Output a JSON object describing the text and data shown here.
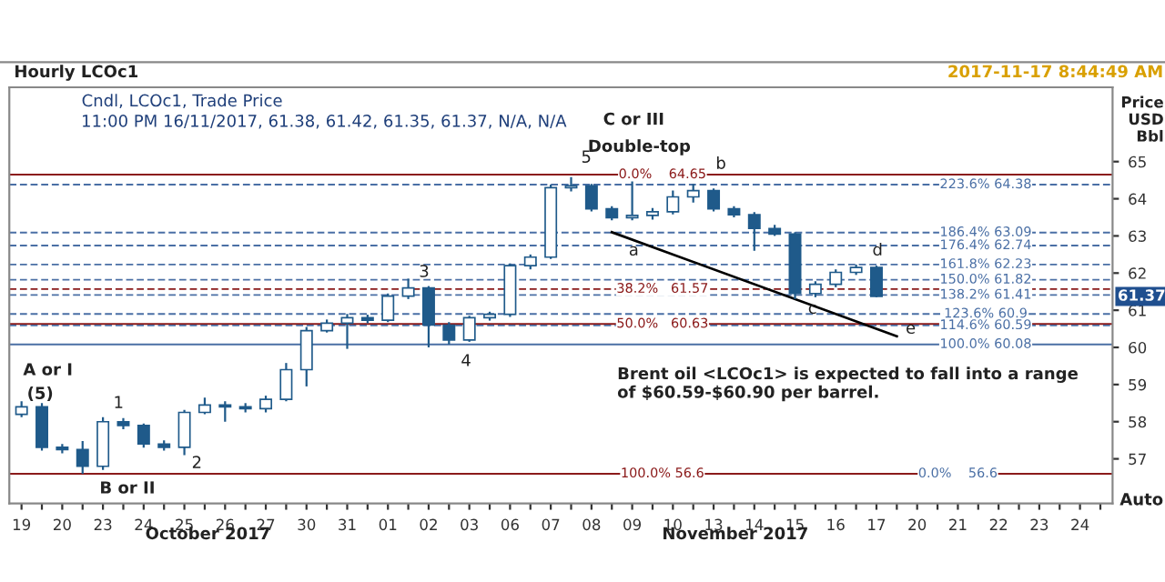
{
  "chart_data": {
    "type": "candlestick",
    "title": "Hourly LCOc1",
    "subtitle": "Cndl, LCOc1, Trade Price",
    "ylabel": "Price\nUSD\nBbl",
    "color": "#1f5a8a",
    "categories": [
      "19",
      null,
      "20",
      null,
      "23",
      null,
      "24",
      null,
      "25",
      null,
      "26",
      null,
      "27",
      null,
      "30",
      null,
      "31",
      null,
      "01",
      null,
      "02",
      null,
      "03",
      null,
      "06",
      null,
      "07",
      null,
      "08",
      null,
      "09",
      null,
      "10",
      null,
      "13",
      null,
      "14",
      null,
      "15",
      null,
      "16",
      null,
      "17",
      null,
      "20",
      null,
      "21",
      null,
      "22",
      null,
      "23",
      null,
      "24",
      null
    ],
    "ohlc": [
      [
        58.2,
        58.55,
        58.12,
        58.4
      ],
      [
        58.4,
        58.5,
        57.22,
        57.31
      ],
      [
        57.31,
        57.4,
        57.15,
        57.25
      ],
      [
        57.25,
        57.48,
        56.6,
        56.8
      ],
      [
        56.8,
        58.12,
        56.7,
        58.0
      ],
      [
        58.0,
        58.1,
        57.8,
        57.9
      ],
      [
        57.9,
        57.95,
        57.3,
        57.4
      ],
      [
        57.4,
        57.5,
        57.22,
        57.31
      ],
      [
        57.31,
        58.32,
        57.1,
        58.25
      ],
      [
        58.25,
        58.65,
        58.2,
        58.45
      ],
      [
        58.45,
        58.55,
        58.0,
        58.4
      ],
      [
        58.4,
        58.5,
        58.25,
        58.35
      ],
      [
        58.35,
        58.7,
        58.25,
        58.6
      ],
      [
        58.6,
        59.58,
        58.55,
        59.4
      ],
      [
        59.4,
        60.55,
        58.95,
        60.45
      ],
      [
        60.45,
        60.75,
        60.4,
        60.65
      ],
      [
        60.65,
        60.9,
        59.96,
        60.8
      ],
      [
        60.8,
        60.88,
        60.65,
        60.73
      ],
      [
        60.73,
        61.45,
        60.68,
        61.38
      ],
      [
        61.38,
        61.85,
        61.3,
        61.6
      ],
      [
        61.6,
        61.65,
        60.0,
        60.6
      ],
      [
        60.6,
        60.68,
        60.08,
        60.2
      ],
      [
        60.2,
        60.85,
        60.15,
        60.8
      ],
      [
        60.8,
        60.96,
        60.72,
        60.89
      ],
      [
        60.89,
        62.26,
        60.82,
        62.2
      ],
      [
        62.2,
        62.5,
        62.1,
        62.43
      ],
      [
        62.43,
        64.38,
        62.38,
        64.3
      ],
      [
        64.3,
        64.58,
        64.2,
        64.35
      ],
      [
        64.35,
        64.4,
        63.66,
        63.73
      ],
      [
        63.73,
        63.8,
        63.42,
        63.49
      ],
      [
        63.49,
        64.65,
        63.42,
        63.55
      ],
      [
        63.55,
        63.75,
        63.44,
        63.65
      ],
      [
        63.65,
        64.22,
        63.58,
        64.05
      ],
      [
        64.05,
        64.4,
        63.9,
        64.22
      ],
      [
        64.22,
        64.28,
        63.66,
        63.73
      ],
      [
        63.73,
        63.8,
        63.5,
        63.57
      ],
      [
        63.57,
        63.64,
        62.6,
        63.2
      ],
      [
        63.2,
        63.3,
        63.0,
        63.05
      ],
      [
        63.05,
        63.1,
        61.3,
        61.45
      ],
      [
        61.45,
        61.78,
        61.35,
        61.7
      ],
      [
        61.7,
        62.1,
        61.62,
        62.02
      ],
      [
        62.02,
        62.23,
        61.95,
        62.15
      ],
      [
        62.15,
        62.2,
        61.35,
        61.37
      ],
      null,
      null,
      null,
      null,
      null,
      null,
      null,
      null,
      null,
      null,
      null
    ],
    "series": [
      {
        "type": "line",
        "color": "#000000",
        "values": [
          null,
          null,
          null,
          null,
          null,
          null,
          null,
          null,
          null,
          null,
          null,
          null,
          null,
          null,
          null,
          null,
          null,
          null,
          null,
          null,
          null,
          null,
          null,
          null,
          null,
          null,
          null,
          null,
          null,
          63.1,
          null,
          null,
          null,
          null,
          null,
          null,
          null,
          null,
          null,
          null,
          null,
          null,
          null,
          60.3,
          null,
          null,
          null,
          null,
          null,
          null,
          null,
          null,
          null,
          null
        ]
      }
    ],
    "ylim": [
      55.8,
      67.0
    ],
    "yticks": [
      57,
      58,
      59,
      60,
      61,
      62,
      63,
      64,
      65
    ],
    "grid": false,
    "ref_lines": [
      {
        "axis": "y",
        "value": 64.65,
        "label": "0.0%    64.65",
        "color": "#8b1a1a",
        "line_style": "solid"
      },
      {
        "axis": "y",
        "value": 61.57,
        "label": "38.2%   61.57",
        "color": "#8b1a1a",
        "line_style": "dashed"
      },
      {
        "axis": "y",
        "value": 60.63,
        "label": "50.0%   60.63",
        "color": "#8b1a1a",
        "line_style": "solid"
      },
      {
        "axis": "y",
        "value": 56.6,
        "label": "100.0% 56.6",
        "color": "#8b1a1a",
        "line_style": "solid"
      },
      {
        "axis": "y",
        "value": 64.38,
        "label": "223.6% 64.38",
        "color": "#4a6fa5",
        "line_style": "dashed"
      },
      {
        "axis": "y",
        "value": 63.09,
        "label": "186.4% 63.09",
        "color": "#4a6fa5",
        "line_style": "dashed"
      },
      {
        "axis": "y",
        "value": 62.74,
        "label": "176.4% 62.74",
        "color": "#4a6fa5",
        "line_style": "dashed"
      },
      {
        "axis": "y",
        "value": 62.23,
        "label": "161.8% 62.23",
        "color": "#4a6fa5",
        "line_style": "dashed"
      },
      {
        "axis": "y",
        "value": 61.82,
        "label": "150.0% 61.82",
        "color": "#4a6fa5",
        "line_style": "dashed"
      },
      {
        "axis": "y",
        "value": 61.41,
        "label": "138.2% 61.41",
        "color": "#4a6fa5",
        "line_style": "dashed"
      },
      {
        "axis": "y",
        "value": 60.9,
        "label": "123.6% 60.9",
        "color": "#4a6fa5",
        "line_style": "dashed"
      },
      {
        "axis": "y",
        "value": 60.59,
        "label": "114.6% 60.59",
        "color": "#4a6fa5",
        "line_style": "dashed"
      },
      {
        "axis": "y",
        "value": 60.08,
        "label": "100.0% 60.08",
        "color": "#4a6fa5",
        "line_style": "solid"
      }
    ],
    "annotations": [
      "11:00 PM 16/11/2017, 61.38, 61.42, 61.35, 61.37, N/A, N/A",
      "2017-11-17 8:44:49 AM",
      "Brent oil <LCOc1> is expected to fall into a range\nof $60.59-$60.90 per barrel.",
      "Auto",
      "October 2017",
      "November 2017",
      "A or I",
      "(5)",
      "1",
      "B or II",
      "2",
      "3",
      "4",
      "5",
      "C or III",
      "Double-top",
      "a",
      "b",
      "c",
      "d",
      "e",
      {
        "text": "61.37",
        "y": 61.37
      },
      {
        "text": "0.0%    56.6",
        "x": "21",
        "y": 56.6
      }
    ]
  }
}
